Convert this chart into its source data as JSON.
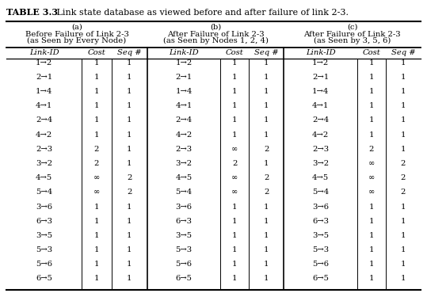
{
  "title_bold": "TABLE 3.3",
  "title_rest": "   Link state database as viewed before and after failure of link 2-3.",
  "section_a_header1": "(a)",
  "section_a_header2": "Before Failure of Link 2-3",
  "section_a_header3": "(as Seen by Every Node)",
  "section_b_header1": "(b)",
  "section_b_header2": "After Failure of Link 2-3",
  "section_b_header3": "(as Seen by Nodes 1, 2, 4)",
  "section_c_header1": "(c)",
  "section_c_header2": "After Failure of Link 2-3",
  "section_c_header3": "(as Seen by 3, 5, 6)",
  "col_headers": [
    "Link-ID",
    "Cost",
    "Seq #"
  ],
  "rows_a": [
    [
      "1→2",
      "1",
      "1"
    ],
    [
      "2→1",
      "1",
      "1"
    ],
    [
      "1→4",
      "1",
      "1"
    ],
    [
      "4→1",
      "1",
      "1"
    ],
    [
      "2→4",
      "1",
      "1"
    ],
    [
      "4→2",
      "1",
      "1"
    ],
    [
      "2→3",
      "2",
      "1"
    ],
    [
      "3→2",
      "2",
      "1"
    ],
    [
      "4→5",
      "∞",
      "2"
    ],
    [
      "5→4",
      "∞",
      "2"
    ],
    [
      "3→6",
      "1",
      "1"
    ],
    [
      "6→3",
      "1",
      "1"
    ],
    [
      "3→5",
      "1",
      "1"
    ],
    [
      "5→3",
      "1",
      "1"
    ],
    [
      "5→6",
      "1",
      "1"
    ],
    [
      "6→5",
      "1",
      "1"
    ]
  ],
  "rows_b": [
    [
      "1→2",
      "1",
      "1"
    ],
    [
      "2→1",
      "1",
      "1"
    ],
    [
      "1→4",
      "1",
      "1"
    ],
    [
      "4→1",
      "1",
      "1"
    ],
    [
      "2→4",
      "1",
      "1"
    ],
    [
      "4→2",
      "1",
      "1"
    ],
    [
      "2→3",
      "∞",
      "2"
    ],
    [
      "3→2",
      "2",
      "1"
    ],
    [
      "4→5",
      "∞",
      "2"
    ],
    [
      "5→4",
      "∞",
      "2"
    ],
    [
      "3→6",
      "1",
      "1"
    ],
    [
      "6→3",
      "1",
      "1"
    ],
    [
      "3→5",
      "1",
      "1"
    ],
    [
      "5→3",
      "1",
      "1"
    ],
    [
      "5→6",
      "1",
      "1"
    ],
    [
      "6→5",
      "1",
      "1"
    ]
  ],
  "rows_c": [
    [
      "1→2",
      "1",
      "1"
    ],
    [
      "2→1",
      "1",
      "1"
    ],
    [
      "1→4",
      "1",
      "1"
    ],
    [
      "4→1",
      "1",
      "1"
    ],
    [
      "2→4",
      "1",
      "1"
    ],
    [
      "4→2",
      "1",
      "1"
    ],
    [
      "2→3",
      "2",
      "1"
    ],
    [
      "3→2",
      "∞",
      "2"
    ],
    [
      "4→5",
      "∞",
      "2"
    ],
    [
      "5→4",
      "∞",
      "2"
    ],
    [
      "3→6",
      "1",
      "1"
    ],
    [
      "6→3",
      "1",
      "1"
    ],
    [
      "3→5",
      "1",
      "1"
    ],
    [
      "5→3",
      "1",
      "1"
    ],
    [
      "5→6",
      "1",
      "1"
    ],
    [
      "6→5",
      "1",
      "1"
    ]
  ],
  "bg_color": "#ffffff",
  "text_color": "#000000",
  "title_fontsize": 8.0,
  "header_fontsize": 7.2,
  "cell_fontsize": 7.2
}
